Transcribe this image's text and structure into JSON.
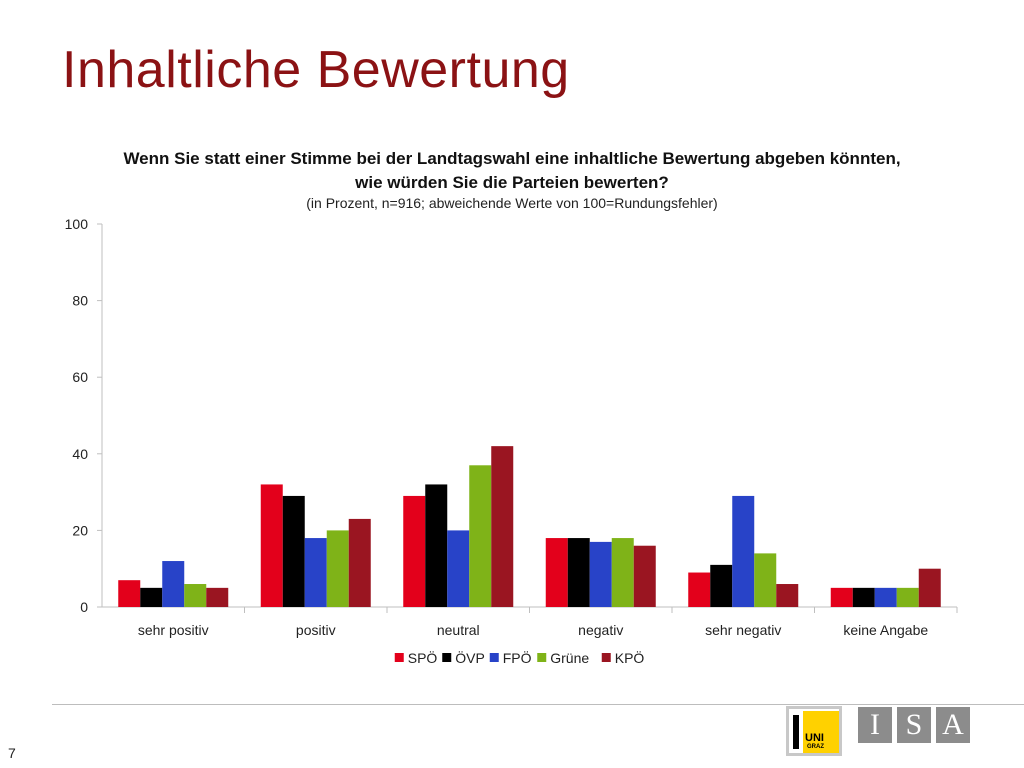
{
  "slide": {
    "title": "Inhaltliche Bewertung",
    "page_number": "7"
  },
  "logos": {
    "uni_line1": "UNI",
    "uni_line2": "GRAZ",
    "isa": [
      "I",
      "S",
      "A"
    ]
  },
  "colors": {
    "title": "#8b1214",
    "SPÖ": "#e3001b",
    "ÖVP": "#000000",
    "FPÖ": "#2843c8",
    "Grüne": "#7fb318",
    "KPÖ": "#9a1521"
  },
  "chart_data": {
    "type": "bar",
    "title_line1": "Wenn Sie statt einer Stimme bei der Landtagswahl eine inhaltliche Bewertung abgeben könnten,",
    "title_line2": "wie würden Sie die Parteien bewerten?",
    "subtitle": "(in Prozent, n=916; abweichende Werte von 100=Rundungsfehler)",
    "categories": [
      "sehr positiv",
      "positiv",
      "neutral",
      "negativ",
      "sehr negativ",
      "keine Angabe"
    ],
    "series": [
      {
        "name": "SPÖ",
        "values": [
          7,
          32,
          29,
          18,
          9,
          5
        ]
      },
      {
        "name": "ÖVP",
        "values": [
          5,
          29,
          32,
          18,
          11,
          5
        ]
      },
      {
        "name": "FPÖ",
        "values": [
          12,
          18,
          20,
          17,
          29,
          5
        ]
      },
      {
        "name": "Grüne",
        "values": [
          6,
          20,
          37,
          18,
          14,
          5
        ]
      },
      {
        "name": "KPÖ",
        "values": [
          5,
          23,
          42,
          16,
          6,
          10
        ]
      }
    ],
    "yticks": [
      0,
      20,
      40,
      60,
      80,
      100
    ],
    "ylim": [
      0,
      100
    ],
    "legend_position": "bottom",
    "grid": false
  }
}
